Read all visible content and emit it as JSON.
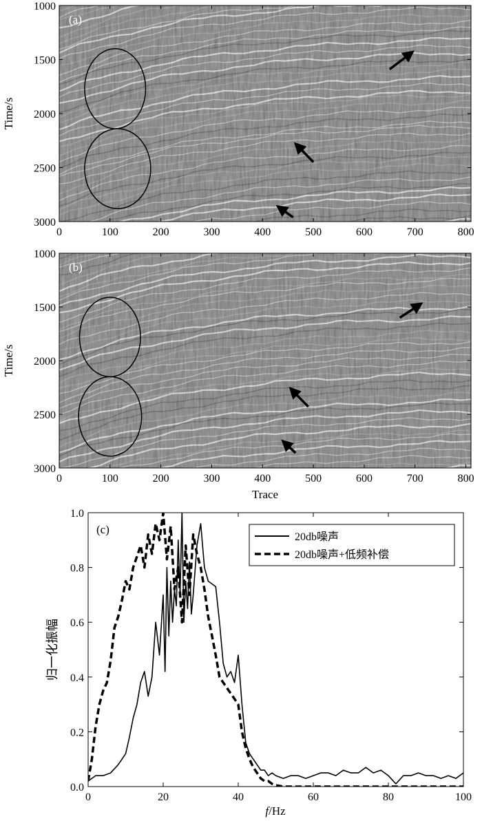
{
  "chart_data": [
    {
      "id": "a",
      "type": "heatmap",
      "panel_label": "(a)",
      "xlabel": "",
      "ylabel": "Time/s",
      "xlim": [
        0,
        810
      ],
      "ylim": [
        1000,
        3000
      ],
      "xticks": [
        "0",
        "100",
        "200",
        "300",
        "400",
        "500",
        "600",
        "700",
        "800"
      ],
      "yticks": [
        "1000",
        "1500",
        "2000",
        "2500",
        "3000"
      ],
      "circles": [
        {
          "trace": 110,
          "time": 1770,
          "rx_traces": 60,
          "ry_time": 370
        },
        {
          "trace": 115,
          "time": 2510,
          "rx_traces": 65,
          "ry_time": 370
        }
      ],
      "arrows": [
        {
          "from": [
            650,
            1590
          ],
          "to": [
            695,
            1430
          ]
        },
        {
          "from": [
            500,
            2450
          ],
          "to": [
            465,
            2280
          ]
        },
        {
          "from": [
            460,
            2960
          ],
          "to": [
            430,
            2860
          ]
        }
      ]
    },
    {
      "id": "b",
      "type": "heatmap",
      "panel_label": "(b)",
      "xlabel": "Trace",
      "ylabel": "Time/s",
      "xlim": [
        0,
        810
      ],
      "ylim": [
        1000,
        3000
      ],
      "xticks": [
        "0",
        "100",
        "200",
        "300",
        "400",
        "500",
        "600",
        "700",
        "800"
      ],
      "yticks": [
        "1000",
        "1500",
        "2000",
        "2500",
        "3000"
      ],
      "circles": [
        {
          "trace": 100,
          "time": 1780,
          "rx_traces": 60,
          "ry_time": 370
        },
        {
          "trace": 100,
          "time": 2520,
          "rx_traces": 62,
          "ry_time": 370
        }
      ],
      "arrows": [
        {
          "from": [
            670,
            1600
          ],
          "to": [
            712,
            1470
          ]
        },
        {
          "from": [
            490,
            2430
          ],
          "to": [
            455,
            2260
          ]
        },
        {
          "from": [
            465,
            2860
          ],
          "to": [
            440,
            2750
          ]
        }
      ]
    },
    {
      "id": "c",
      "type": "line",
      "panel_label": "(c)",
      "xlabel_italic": "f",
      "xlabel": "/Hz",
      "ylabel": "归一化振幅",
      "xlim": [
        0,
        100
      ],
      "ylim": [
        0,
        1
      ],
      "xticks": [
        "0",
        "20",
        "40",
        "60",
        "80",
        "100"
      ],
      "yticks": [
        "0.0",
        "0.2",
        "0.4",
        "0.6",
        "0.8",
        "1.0"
      ],
      "legend_position": "top-right",
      "series": [
        {
          "name": "20db噪声",
          "style": "solid",
          "x": [
            0,
            2,
            4,
            6,
            8,
            9,
            10,
            11,
            12,
            13,
            14,
            15,
            16,
            17,
            18,
            19,
            20,
            20.5,
            21,
            21.5,
            22,
            22.5,
            23,
            23.5,
            24,
            24.5,
            25,
            25.5,
            26,
            26.5,
            27,
            27.5,
            28,
            29,
            30,
            31,
            32,
            33,
            34,
            35,
            36,
            37,
            38,
            39,
            40,
            41,
            42,
            43,
            44,
            45,
            46,
            47,
            48,
            49,
            50,
            52,
            54,
            56,
            58,
            60,
            62,
            64,
            66,
            68,
            70,
            72,
            74,
            76,
            78,
            80,
            82,
            84,
            86,
            88,
            90,
            92,
            94,
            96,
            98,
            100
          ],
          "y": [
            0.02,
            0.04,
            0.04,
            0.05,
            0.08,
            0.1,
            0.12,
            0.18,
            0.25,
            0.3,
            0.38,
            0.42,
            0.33,
            0.4,
            0.6,
            0.48,
            0.7,
            0.42,
            0.8,
            0.55,
            0.75,
            0.6,
            0.72,
            0.66,
            0.9,
            0.7,
            1.0,
            0.6,
            0.75,
            0.65,
            0.82,
            0.63,
            0.7,
            0.88,
            0.96,
            0.8,
            0.75,
            0.74,
            0.73,
            0.6,
            0.45,
            0.4,
            0.42,
            0.38,
            0.48,
            0.3,
            0.16,
            0.12,
            0.1,
            0.08,
            0.06,
            0.06,
            0.04,
            0.05,
            0.04,
            0.03,
            0.04,
            0.04,
            0.03,
            0.04,
            0.05,
            0.05,
            0.04,
            0.06,
            0.05,
            0.05,
            0.07,
            0.05,
            0.06,
            0.04,
            0.01,
            0.04,
            0.04,
            0.05,
            0.04,
            0.04,
            0.03,
            0.04,
            0.03,
            0.05
          ]
        },
        {
          "name": "20db噪声+低频补偿",
          "style": "dashed",
          "x": [
            0,
            1,
            2,
            3,
            4,
            5,
            6,
            7,
            8,
            9,
            10,
            11,
            12,
            13,
            14,
            15,
            16,
            17,
            18,
            19,
            20,
            21,
            22,
            23,
            24,
            25,
            26,
            27,
            28,
            29,
            30,
            31,
            32,
            33,
            34,
            35,
            36,
            37,
            38,
            39,
            40,
            41,
            42,
            43,
            44,
            45,
            46,
            47,
            48,
            49,
            50,
            52,
            55,
            60,
            65,
            70,
            75,
            80,
            85,
            90,
            95,
            100
          ],
          "y": [
            0.02,
            0.1,
            0.22,
            0.3,
            0.35,
            0.38,
            0.46,
            0.58,
            0.62,
            0.68,
            0.75,
            0.72,
            0.8,
            0.84,
            0.88,
            0.8,
            0.92,
            0.85,
            0.96,
            0.9,
            1.0,
            0.83,
            0.95,
            0.72,
            0.8,
            0.6,
            0.88,
            0.7,
            0.92,
            0.85,
            0.8,
            0.72,
            0.62,
            0.55,
            0.48,
            0.4,
            0.38,
            0.36,
            0.34,
            0.32,
            0.3,
            0.2,
            0.14,
            0.1,
            0.07,
            0.05,
            0.03,
            0.02,
            0.02,
            0.01,
            0.005,
            0.0,
            0.0,
            0.0,
            0.0,
            0.0,
            0.0,
            0.0,
            0.0,
            0.0,
            0.0,
            0.0
          ]
        }
      ]
    }
  ]
}
